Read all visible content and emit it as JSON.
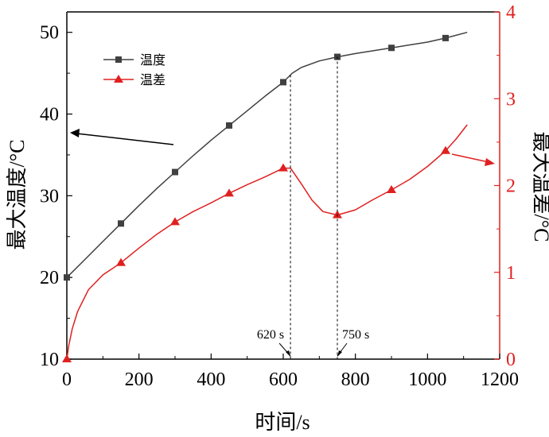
{
  "chart_data": {
    "type": "line",
    "xlabel": "时间/s",
    "ylabel_left": "最大温度/°C",
    "ylabel_right": "最大温差/°C",
    "xlim": [
      0,
      1200
    ],
    "ylim_left": [
      10,
      52.5
    ],
    "ylim_right": [
      0,
      4
    ],
    "x_ticks": [
      0,
      200,
      400,
      600,
      800,
      1000,
      1200
    ],
    "y_left_ticks": [
      10,
      20,
      30,
      40,
      50
    ],
    "y_right_ticks": [
      0,
      1,
      2,
      3,
      4
    ],
    "legend_position": "top-left",
    "grid": false,
    "series": [
      {
        "name": "温度",
        "axis": "left",
        "color": "#404040",
        "marker": "square",
        "x": [
          0,
          50,
          100,
          150,
          200,
          250,
          300,
          350,
          400,
          450,
          500,
          550,
          600,
          625,
          650,
          700,
          750,
          800,
          900,
          1000,
          1050,
          1110
        ],
        "y": [
          20.0,
          22.2,
          24.4,
          26.6,
          28.8,
          30.9,
          32.9,
          34.9,
          36.8,
          38.6,
          40.4,
          42.2,
          43.9,
          45.0,
          45.7,
          46.5,
          47.0,
          47.4,
          48.1,
          48.8,
          49.3,
          50.0
        ],
        "marker_x": [
          0,
          150,
          300,
          450,
          600,
          750,
          900,
          1050
        ],
        "marker_y": [
          20.0,
          26.6,
          32.9,
          38.6,
          43.9,
          47.0,
          48.1,
          49.3
        ]
      },
      {
        "name": "温差",
        "axis": "right",
        "color": "#e02020",
        "marker": "triangle",
        "x": [
          0,
          5,
          15,
          30,
          60,
          100,
          150,
          200,
          250,
          300,
          350,
          400,
          450,
          500,
          550,
          600,
          620,
          650,
          680,
          710,
          750,
          800,
          850,
          900,
          950,
          1000,
          1050,
          1080,
          1110
        ],
        "y": [
          0.0,
          0.15,
          0.35,
          0.55,
          0.8,
          0.97,
          1.11,
          1.28,
          1.44,
          1.58,
          1.7,
          1.8,
          1.91,
          2.01,
          2.1,
          2.2,
          2.2,
          2.02,
          1.83,
          1.7,
          1.66,
          1.72,
          1.84,
          1.95,
          2.07,
          2.22,
          2.4,
          2.54,
          2.7
        ],
        "marker_x": [
          0,
          150,
          300,
          450,
          600,
          750,
          900,
          1050
        ],
        "marker_y": [
          0.0,
          1.11,
          1.58,
          1.91,
          2.2,
          1.66,
          1.95,
          2.4
        ]
      }
    ],
    "annotations": [
      {
        "label": "620 s",
        "x": 620
      },
      {
        "label": "750 s",
        "x": 750
      }
    ]
  }
}
